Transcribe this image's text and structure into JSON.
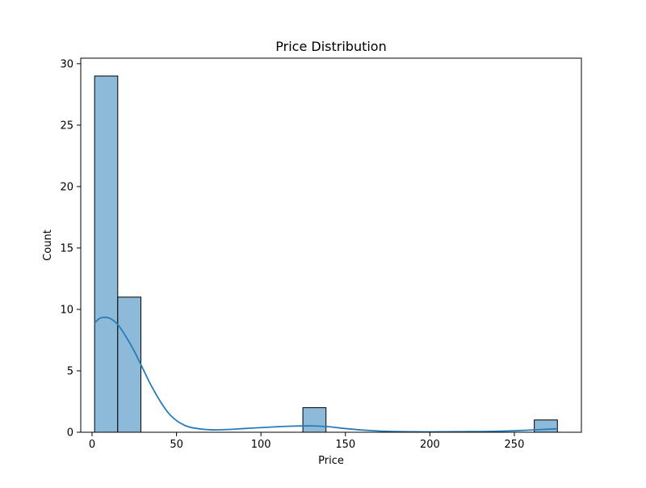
{
  "chart_data": {
    "type": "bar",
    "title": "Price Distribution",
    "xlabel": "Price",
    "ylabel": "Count",
    "xlim": [
      -6.7,
      289.7
    ],
    "ylim": [
      0,
      30.45
    ],
    "x_ticks": [
      0,
      50,
      100,
      150,
      200,
      250
    ],
    "y_ticks": [
      0,
      5,
      10,
      15,
      20,
      25,
      30
    ],
    "grid": false,
    "bins": [
      {
        "x0": 1.5,
        "x1": 15.2,
        "count": 29
      },
      {
        "x0": 15.2,
        "x1": 28.9,
        "count": 11
      },
      {
        "x0": 28.9,
        "x1": 42.6,
        "count": 0
      },
      {
        "x0": 42.6,
        "x1": 56.3,
        "count": 0
      },
      {
        "x0": 56.3,
        "x1": 70.0,
        "count": 0
      },
      {
        "x0": 70.0,
        "x1": 83.7,
        "count": 0
      },
      {
        "x0": 83.7,
        "x1": 97.4,
        "count": 0
      },
      {
        "x0": 97.4,
        "x1": 111.1,
        "count": 0
      },
      {
        "x0": 111.1,
        "x1": 124.8,
        "count": 0
      },
      {
        "x0": 124.8,
        "x1": 138.5,
        "count": 2
      },
      {
        "x0": 138.5,
        "x1": 152.2,
        "count": 0
      },
      {
        "x0": 152.2,
        "x1": 165.9,
        "count": 0
      },
      {
        "x0": 165.9,
        "x1": 179.6,
        "count": 0
      },
      {
        "x0": 179.6,
        "x1": 193.3,
        "count": 0
      },
      {
        "x0": 193.3,
        "x1": 207.0,
        "count": 0
      },
      {
        "x0": 207.0,
        "x1": 220.7,
        "count": 0
      },
      {
        "x0": 220.7,
        "x1": 234.4,
        "count": 0
      },
      {
        "x0": 234.4,
        "x1": 248.1,
        "count": 0
      },
      {
        "x0": 248.1,
        "x1": 261.8,
        "count": 0
      },
      {
        "x0": 261.8,
        "x1": 275.5,
        "count": 1
      }
    ],
    "kde": {
      "x": [
        1.5,
        5,
        10,
        15,
        20,
        25,
        30,
        35,
        40,
        45,
        50,
        55,
        60,
        70,
        80,
        90,
        100,
        110,
        120,
        130,
        140,
        150,
        160,
        170,
        180,
        190,
        200,
        210,
        220,
        230,
        240,
        250,
        260,
        270,
        275.5
      ],
      "y": [
        8.9,
        9.3,
        9.3,
        8.8,
        7.8,
        6.6,
        5.2,
        3.8,
        2.6,
        1.6,
        0.95,
        0.55,
        0.35,
        0.2,
        0.22,
        0.3,
        0.38,
        0.45,
        0.5,
        0.52,
        0.45,
        0.3,
        0.18,
        0.1,
        0.06,
        0.04,
        0.03,
        0.04,
        0.05,
        0.06,
        0.08,
        0.12,
        0.18,
        0.25,
        0.28
      ]
    },
    "colors": {
      "bar_fill": "#8dbad9",
      "bar_edge": "#000000",
      "kde_line": "#2b7bb6"
    }
  }
}
